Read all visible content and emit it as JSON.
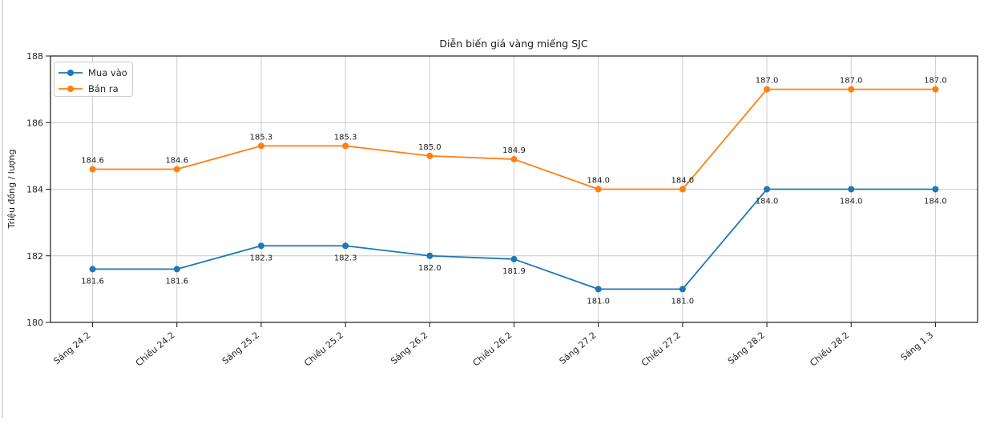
{
  "window": {
    "background": "#ffffff",
    "left_border_color": "#d9d9d9"
  },
  "chart_data": {
    "type": "line",
    "title": "Diễn biến giá vàng miếng SJC",
    "xlabel": "",
    "ylabel": "Triệu đồng / lượng",
    "categories": [
      "Sáng 24.2",
      "Chiều 24.2",
      "Sáng 25.2",
      "Chiều 25.2",
      "Sáng 26.2",
      "Chiều 26.2",
      "Sáng 27.2",
      "Chiều 27.2",
      "Sáng 28.2",
      "Chiều 28.2",
      "Sáng 1.3"
    ],
    "series": [
      {
        "name": "Mua vào",
        "color": "#1f77b4",
        "values": [
          181.6,
          181.6,
          182.3,
          182.3,
          182.0,
          181.9,
          181.0,
          181.0,
          184.0,
          184.0,
          184.0
        ],
        "point_label_position": "below"
      },
      {
        "name": "Bán ra",
        "color": "#ff7f0e",
        "values": [
          184.6,
          184.6,
          185.3,
          185.3,
          185.0,
          184.9,
          184.0,
          184.0,
          187.0,
          187.0,
          187.0
        ],
        "point_label_position": "above"
      }
    ],
    "ylim": [
      180,
      188
    ],
    "yticks": [
      "180",
      "182",
      "184",
      "186",
      "188"
    ],
    "grid": true,
    "grid_color": "#c9c9c9",
    "spine_color": "#1a1a1a",
    "legend_position": "upper-left",
    "point_labels_shown": true,
    "point_label_decimals": 1,
    "xtick_rotation_deg": 40
  }
}
